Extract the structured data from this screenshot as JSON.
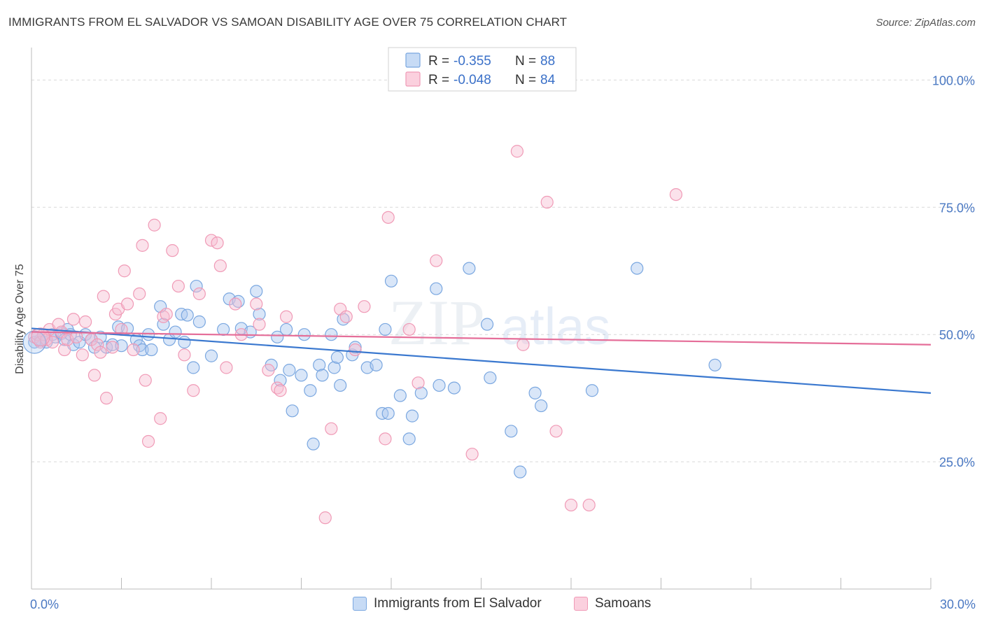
{
  "header": {
    "title": "IMMIGRANTS FROM EL SALVADOR VS SAMOAN DISABILITY AGE OVER 75 CORRELATION CHART",
    "source": "Source: ZipAtlas.com"
  },
  "watermark": {
    "zip": "ZIP",
    "atlas": "atlas"
  },
  "stats_legend": [
    {
      "r_label": "R =",
      "r_value": "-0.355",
      "n_label": "N =",
      "n_value": "88",
      "color": "#7aa7e0"
    },
    {
      "r_label": "R =",
      "r_value": "-0.048",
      "n_label": "N =",
      "n_value": "84",
      "color": "#f09ab6"
    }
  ],
  "bottom_legend": [
    {
      "label": "Immigrants from El Salvador",
      "color": "#7aa7e0"
    },
    {
      "label": "Samoans",
      "color": "#f09ab6"
    }
  ],
  "chart_data": {
    "type": "scatter",
    "title": "IMMIGRANTS FROM EL SALVADOR VS SAMOAN DISABILITY AGE OVER 75 CORRELATION CHART",
    "xlabel": "",
    "ylabel": "Disability Age Over 75",
    "xlim": [
      0,
      30
    ],
    "ylim": [
      0,
      105
    ],
    "x_tick_labels": [
      {
        "value": 0,
        "label": "0.0%"
      },
      {
        "value": 30,
        "label": "30.0%"
      }
    ],
    "y_tick_labels": [
      {
        "value": 100,
        "label": "100.0%"
      },
      {
        "value": 75,
        "label": "75.0%"
      },
      {
        "value": 50,
        "label": "50.0%"
      },
      {
        "value": 25,
        "label": "25.0%"
      }
    ],
    "grid": true,
    "legend_position": "top-center",
    "series": [
      {
        "name": "Immigrants from El Salvador",
        "color": "#7aa7e0",
        "trend": {
          "x": [
            0,
            30
          ],
          "y": [
            51.2,
            38.5
          ]
        },
        "points": [
          [
            0.1,
            48.5
          ],
          [
            0.3,
            49
          ],
          [
            0.5,
            48.5
          ],
          [
            0.7,
            50
          ],
          [
            0.8,
            49.5
          ],
          [
            1.0,
            50.2
          ],
          [
            1.1,
            49
          ],
          [
            1.2,
            51
          ],
          [
            1.3,
            50
          ],
          [
            1.4,
            48
          ],
          [
            1.6,
            48.5
          ],
          [
            1.8,
            50
          ],
          [
            2.0,
            49
          ],
          [
            2.1,
            47.5
          ],
          [
            2.3,
            49.5
          ],
          [
            2.5,
            47.5
          ],
          [
            2.7,
            48
          ],
          [
            2.9,
            51.5
          ],
          [
            3.0,
            47.8
          ],
          [
            3.2,
            51.2
          ],
          [
            3.5,
            49
          ],
          [
            3.6,
            47.8
          ],
          [
            3.7,
            47
          ],
          [
            3.9,
            50
          ],
          [
            4.0,
            47
          ],
          [
            4.3,
            55.5
          ],
          [
            4.4,
            52
          ],
          [
            4.6,
            49
          ],
          [
            4.8,
            50.5
          ],
          [
            5.0,
            54
          ],
          [
            5.1,
            48.5
          ],
          [
            5.2,
            53.8
          ],
          [
            5.4,
            43.5
          ],
          [
            5.5,
            59.5
          ],
          [
            5.6,
            52.5
          ],
          [
            6.0,
            45.8
          ],
          [
            6.4,
            51
          ],
          [
            6.6,
            57
          ],
          [
            6.9,
            56.5
          ],
          [
            7.0,
            51.2
          ],
          [
            7.3,
            50.5
          ],
          [
            7.5,
            58.5
          ],
          [
            7.6,
            54
          ],
          [
            8.0,
            44
          ],
          [
            8.2,
            49.5
          ],
          [
            8.3,
            41
          ],
          [
            8.5,
            51
          ],
          [
            8.6,
            43
          ],
          [
            8.7,
            35
          ],
          [
            9.0,
            42
          ],
          [
            9.1,
            50
          ],
          [
            9.3,
            39
          ],
          [
            9.4,
            28.5
          ],
          [
            9.6,
            44
          ],
          [
            9.7,
            42
          ],
          [
            10.0,
            50
          ],
          [
            10.1,
            43.5
          ],
          [
            10.2,
            45.5
          ],
          [
            10.3,
            40
          ],
          [
            10.4,
            53
          ],
          [
            10.7,
            46
          ],
          [
            10.8,
            47.5
          ],
          [
            11.2,
            43.5
          ],
          [
            11.5,
            44
          ],
          [
            11.7,
            34.5
          ],
          [
            11.9,
            34.5
          ],
          [
            11.8,
            51
          ],
          [
            12.0,
            60.5
          ],
          [
            12.3,
            38
          ],
          [
            12.6,
            29.5
          ],
          [
            12.7,
            34
          ],
          [
            13.0,
            38.5
          ],
          [
            13.5,
            59
          ],
          [
            13.6,
            40
          ],
          [
            14.1,
            39.5
          ],
          [
            14.6,
            63
          ],
          [
            15.2,
            52
          ],
          [
            15.3,
            41.5
          ],
          [
            16.0,
            31
          ],
          [
            16.3,
            23
          ],
          [
            16.8,
            38.5
          ],
          [
            17.0,
            36
          ],
          [
            18.7,
            39
          ],
          [
            20.2,
            63
          ],
          [
            22.8,
            44
          ]
        ]
      },
      {
        "name": "Samoans",
        "color": "#f09ab6",
        "trend": {
          "x": [
            0,
            30
          ],
          "y": [
            50.5,
            48
          ]
        },
        "points": [
          [
            0.1,
            49.5
          ],
          [
            0.2,
            50
          ],
          [
            0.3,
            48.5
          ],
          [
            0.4,
            50
          ],
          [
            0.5,
            49
          ],
          [
            0.6,
            51
          ],
          [
            0.7,
            48.5
          ],
          [
            0.9,
            52
          ],
          [
            1.0,
            50.5
          ],
          [
            1.1,
            47
          ],
          [
            1.2,
            49
          ],
          [
            1.4,
            53
          ],
          [
            1.5,
            49.5
          ],
          [
            1.7,
            46
          ],
          [
            1.8,
            52.5
          ],
          [
            2.0,
            49
          ],
          [
            2.1,
            42
          ],
          [
            2.2,
            48
          ],
          [
            2.3,
            46.5
          ],
          [
            2.4,
            57.5
          ],
          [
            2.5,
            37.5
          ],
          [
            2.7,
            47.5
          ],
          [
            2.8,
            54
          ],
          [
            2.9,
            55
          ],
          [
            3.0,
            51
          ],
          [
            3.1,
            62.5
          ],
          [
            3.2,
            56
          ],
          [
            3.4,
            47
          ],
          [
            3.6,
            58
          ],
          [
            3.7,
            67.5
          ],
          [
            3.8,
            41
          ],
          [
            3.9,
            29
          ],
          [
            4.1,
            71.5
          ],
          [
            4.3,
            33.5
          ],
          [
            4.4,
            53.5
          ],
          [
            4.5,
            54
          ],
          [
            4.7,
            66.5
          ],
          [
            4.9,
            59.5
          ],
          [
            5.1,
            46
          ],
          [
            5.4,
            39
          ],
          [
            5.6,
            58
          ],
          [
            6.0,
            68.5
          ],
          [
            6.2,
            68
          ],
          [
            6.3,
            63.5
          ],
          [
            6.5,
            43.5
          ],
          [
            6.8,
            56
          ],
          [
            7.0,
            50
          ],
          [
            7.5,
            56
          ],
          [
            7.6,
            52
          ],
          [
            7.9,
            43
          ],
          [
            8.2,
            39.5
          ],
          [
            8.3,
            39
          ],
          [
            8.5,
            53.5
          ],
          [
            9.8,
            14
          ],
          [
            10.0,
            31.5
          ],
          [
            10.3,
            55
          ],
          [
            10.5,
            53.5
          ],
          [
            10.8,
            47
          ],
          [
            11.1,
            55.5
          ],
          [
            11.8,
            29.5
          ],
          [
            11.9,
            73
          ],
          [
            12.6,
            51
          ],
          [
            12.9,
            40.5
          ],
          [
            13.5,
            64.5
          ],
          [
            14.7,
            26.5
          ],
          [
            16.2,
            86
          ],
          [
            16.4,
            48
          ],
          [
            17.2,
            76
          ],
          [
            17.5,
            31
          ],
          [
            18.0,
            16.5
          ],
          [
            18.6,
            16.5
          ],
          [
            21.5,
            77.5
          ]
        ]
      }
    ]
  }
}
